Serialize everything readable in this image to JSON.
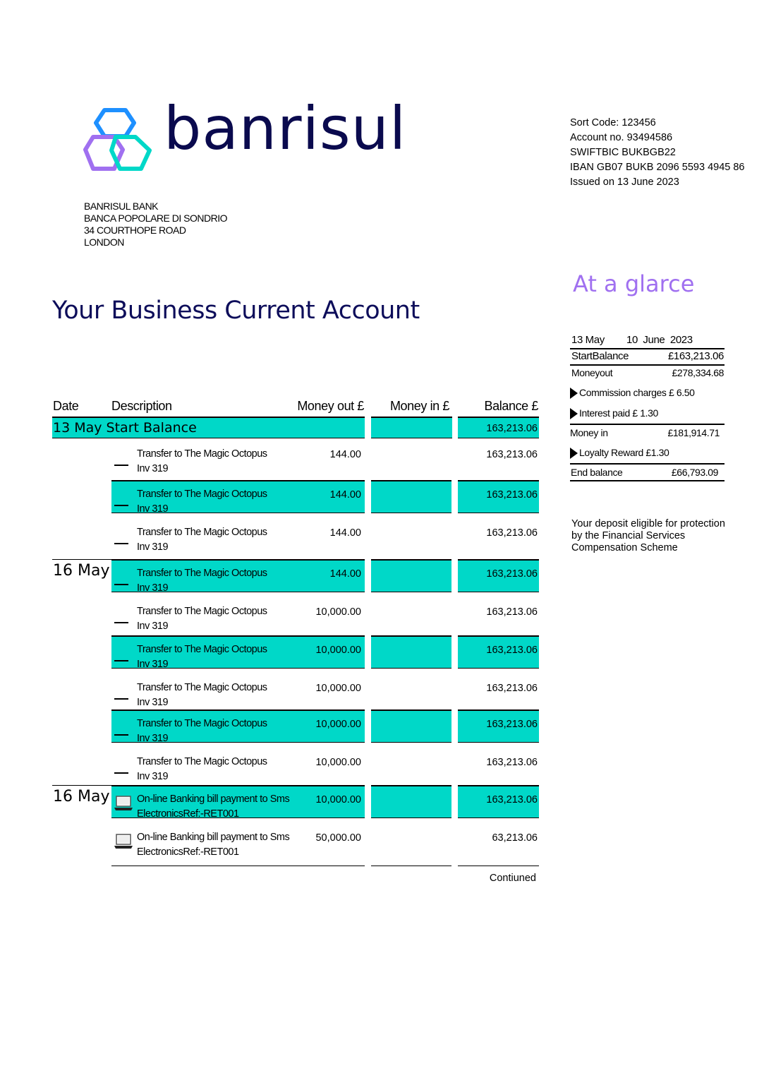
{
  "brand": {
    "name": "banrisul",
    "colors": {
      "blue": "#1e90ff",
      "purple": "#a070f0",
      "teal": "#00d8c8",
      "navy": "#0a0a4e"
    }
  },
  "bank_address": [
    "BANRISUL BANK",
    "BANCA POPOLARE DI SONDRIO",
    "34 COURTHOPE ROAD",
    "LONDON"
  ],
  "account_info": [
    "Sort Code: 123456",
    "Account no. 93494586",
    "SWIFTBIC BUKBGB22",
    "IBAN GB07 BUKB 2096 5593 4945 86",
    "Issued on 13 June 2023"
  ],
  "title": "Your Business Current Account",
  "glance": {
    "title": "At a glarce",
    "period_start": "13 May",
    "period_end": "10  June  2023",
    "start_balance_label": "StartBalance",
    "start_balance": "£163,213.06",
    "money_out_label": "Moneyout",
    "money_out": "£278,334.68",
    "commission": "Commission charges  £ 6.50",
    "interest": "Interest paid £ 1.30",
    "money_in_label": "Money in",
    "money_in": "£181,914.71",
    "loyalty": "Loyalty Reward  £1.30",
    "end_balance_label": "End balance",
    "end_balance": "£66,793.09",
    "note": [
      "Your deposit eligible for protection",
      "by the Financial Services",
      "Compensation Scheme"
    ]
  },
  "table": {
    "headers": {
      "date": "Date",
      "description": "Description",
      "money_out": "Money out £",
      "money_in": "Money in £",
      "balance": "Balance £"
    },
    "start_row": {
      "label": "13 May Start Balance",
      "balance": "163,213.06"
    },
    "rows": [
      {
        "date": "",
        "icon": "dash",
        "desc1": "Transfer to The Magic Octopus",
        "desc2": "Inv 319",
        "out": "144.00",
        "in": "",
        "balance": "163,213.06",
        "highlight": false
      },
      {
        "date": "",
        "icon": "dash",
        "desc1": "Transfer to The Magic Octopus",
        "desc2": "Inv 319",
        "out": "144.00",
        "in": "",
        "balance": "163,213.06",
        "highlight": true
      },
      {
        "date": "",
        "icon": "dash",
        "desc1": "Transfer to The Magic Octopus",
        "desc2": "Inv 319",
        "out": "144.00",
        "in": "",
        "balance": "163,213.06",
        "highlight": false
      },
      {
        "date": "16 May",
        "icon": "dash",
        "desc1": "Transfer to The Magic Octopus",
        "desc2": "Inv 319",
        "out": "144.00",
        "in": "",
        "balance": "163,213.06",
        "highlight": true
      },
      {
        "date": "",
        "icon": "dash",
        "desc1": "Transfer to The Magic Octopus",
        "desc2": "Inv 319",
        "out": "10,000.00",
        "in": "",
        "balance": "163,213.06",
        "highlight": false
      },
      {
        "date": "",
        "icon": "dash",
        "desc1": "Transfer to The Magic Octopus",
        "desc2": "Inv 319",
        "out": "10,000.00",
        "in": "",
        "balance": "163,213.06",
        "highlight": true
      },
      {
        "date": "",
        "icon": "dash",
        "desc1": "Transfer to The Magic Octopus",
        "desc2": "Inv 319",
        "out": "10,000.00",
        "in": "",
        "balance": "163,213.06",
        "highlight": false
      },
      {
        "date": "",
        "icon": "dash",
        "desc1": "Transfer to The Magic Octopus",
        "desc2": "Inv 319",
        "out": "10,000.00",
        "in": "",
        "balance": "163,213.06",
        "highlight": true
      },
      {
        "date": "",
        "icon": "dash",
        "desc1": "Transfer to The Magic Octopus",
        "desc2": "Inv 319",
        "out": "10,000.00",
        "in": "",
        "balance": "163,213.06",
        "highlight": false
      },
      {
        "date": "16 May",
        "icon": "laptop",
        "desc1": "On-line Banking bill payment to Sms",
        "desc2": "ElectronicsRef:-RET001",
        "out": "10,000.00",
        "in": "",
        "balance": "163,213.06",
        "highlight": true
      },
      {
        "date": "",
        "icon": "laptop",
        "desc1": "On-line Banking bill payment to Sms",
        "desc2": "ElectronicsRef:-RET001",
        "out": "50,000.00",
        "in": "",
        "balance": "63,213.06",
        "highlight": false
      }
    ],
    "continued": "Contiuned"
  }
}
